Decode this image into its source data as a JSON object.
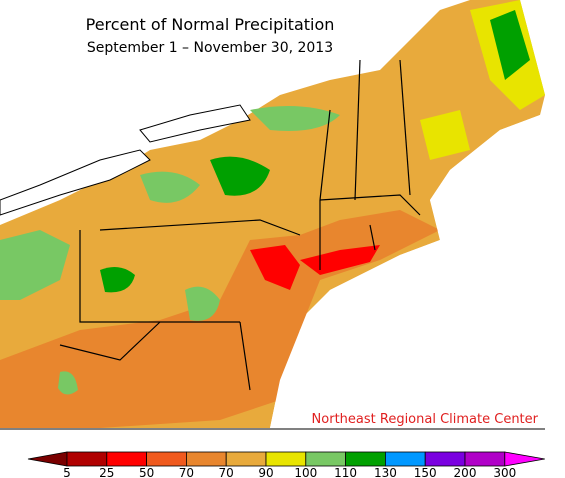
{
  "map": {
    "title": "Percent of Normal Precipitation",
    "subtitle": "September 1 – November 30, 2013",
    "credit": "Northeast Regional Climate Center"
  },
  "legend": {
    "labels": [
      "5",
      "25",
      "50",
      "70",
      "70",
      "90",
      "100",
      "110",
      "130",
      "150",
      "200",
      "300"
    ],
    "colors": [
      "#7a0000",
      "#b00000",
      "#ff0000",
      "#f05a1e",
      "#e8862e",
      "#e8aa3c",
      "#e8e400",
      "#78c864",
      "#00a000",
      "#0098ff",
      "#7a00e0",
      "#b000c8",
      "#ff00ff"
    ]
  }
}
